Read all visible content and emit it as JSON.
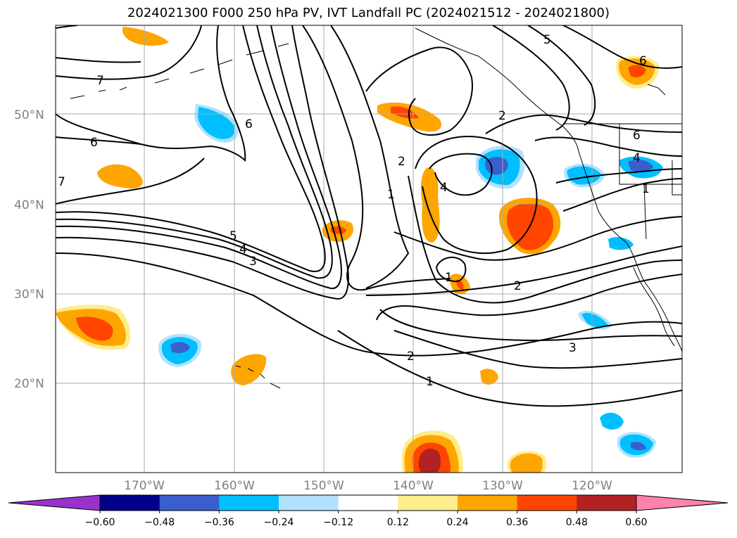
{
  "title": "2024021300 F000 250 hPa PV, IVT Landfall PC (2024021512 - 2024021800)",
  "lat_labels": [
    "50°N",
    "40°N",
    "30°N",
    "20°N"
  ],
  "lon_labels": [
    "170°W",
    "160°W",
    "150°W",
    "140°W",
    "130°W",
    "120°W"
  ],
  "colorbar": {
    "tick_labels": [
      "−0.60",
      "−0.48",
      "−0.36",
      "−0.24",
      "−0.12",
      "0.12",
      "0.24",
      "0.36",
      "0.48",
      "0.60"
    ],
    "colors": [
      "#9932cc",
      "#00008b",
      "#3a5fcd",
      "#00bfff",
      "#b0e2ff",
      "#ffffff",
      "#ffec8b",
      "#ffa500",
      "#ff4500",
      "#b22222",
      "#ff82ab"
    ]
  },
  "contour_labels": [
    "7",
    "6",
    "7",
    "6",
    "5",
    "4",
    "3",
    "2",
    "1",
    "2",
    "4",
    "1",
    "2",
    "5",
    "6",
    "6",
    "4",
    "1",
    "2",
    "3",
    "2",
    "1"
  ]
}
